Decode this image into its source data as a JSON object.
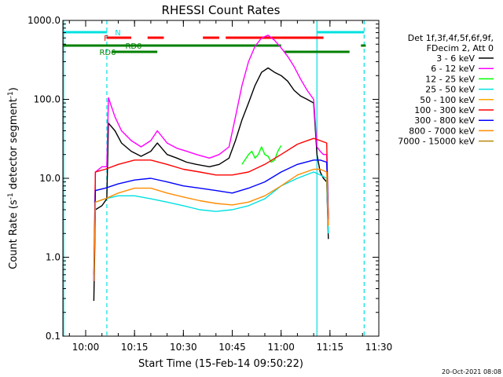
{
  "chart_data": {
    "type": "line",
    "title": "RHESSI Count Rates",
    "xlabel": "Start Time (15-Feb-14 09:50:22)",
    "ylabel_main": "Count Rate (s",
    "ylabel_sup": "-1",
    "ylabel_rest": " detector segment",
    "ylabel_sup2": "-1",
    "ylabel_close": ")",
    "y_scale": "log",
    "ylim": [
      0.1,
      1000
    ],
    "xlim_minutes": [
      -7,
      90
    ],
    "x_origin": "10:00",
    "x_ticks": [
      {
        "m": 0,
        "label": "10:00"
      },
      {
        "m": 15,
        "label": "10:15"
      },
      {
        "m": 30,
        "label": "10:30"
      },
      {
        "m": 45,
        "label": "10:45"
      },
      {
        "m": 60,
        "label": "11:00"
      },
      {
        "m": 75,
        "label": "11:15"
      },
      {
        "m": 90,
        "label": "11:30"
      }
    ],
    "y_ticks": [
      {
        "v": 1000,
        "label": "1000.0"
      },
      {
        "v": 100,
        "label": "100.0"
      },
      {
        "v": 10,
        "label": "10.0"
      },
      {
        "v": 1,
        "label": "1.0"
      },
      {
        "v": 0.1,
        "label": "0.1"
      }
    ],
    "legend_header": [
      "Det 1f,3f,4f,5f,6f,9f,",
      "FDecim 2, Att 0"
    ],
    "legend_placement": "right",
    "date_stamp": "20-Oct-2021 08:08",
    "vertical_markers": [
      {
        "m": -10,
        "style": "solid",
        "color": "#00e0e0"
      },
      {
        "m": 6.5,
        "style": "dashed",
        "color": "#00e0e0"
      },
      {
        "m": 71,
        "style": "solid",
        "color": "#00e0e0"
      },
      {
        "m": 85.5,
        "style": "dashed",
        "color": "#00e0e0"
      }
    ],
    "flag_bars": [
      {
        "label": "N",
        "color": "#00e0e0",
        "y": 41,
        "segments": [
          [
            -10,
            6.5
          ],
          [
            71,
            85.5
          ]
        ]
      },
      {
        "label": "F",
        "color": "#ff0000",
        "y": 48,
        "segments": [
          [
            6.5,
            14
          ],
          [
            19,
            24
          ],
          [
            36,
            41
          ],
          [
            43,
            73
          ]
        ]
      },
      {
        "label": "RD0",
        "color": "#008000",
        "y": 58,
        "segments": [
          [
            -10,
            60
          ],
          [
            84.5,
            86
          ]
        ]
      },
      {
        "label": "RD6",
        "color": "#008000",
        "y": 66,
        "segments": [
          [
            8,
            22
          ],
          [
            61,
            81
          ]
        ]
      }
    ],
    "series": [
      {
        "name": "3 - 6 keV",
        "color": "#000000",
        "x": [
          2.5,
          3,
          5,
          6.5,
          7,
          9,
          11,
          14,
          17,
          20,
          22,
          25,
          28,
          31,
          34,
          38,
          41,
          44,
          46,
          48,
          50,
          52,
          54,
          56,
          58,
          60,
          62,
          64,
          66,
          68,
          70,
          71,
          72,
          73,
          74,
          74.5
        ],
        "y": [
          0.28,
          4,
          4.5,
          5.5,
          50,
          40,
          28,
          22,
          19,
          22,
          28,
          20,
          18,
          16,
          15,
          14,
          15,
          18,
          30,
          55,
          90,
          150,
          220,
          250,
          220,
          200,
          170,
          130,
          110,
          100,
          90,
          20,
          12,
          10,
          9,
          1.7
        ]
      },
      {
        "name": "6 - 12 keV",
        "color": "#ff00ff",
        "x": [
          2.5,
          3,
          5,
          6.5,
          7,
          9,
          11,
          14,
          17,
          20,
          22,
          25,
          28,
          31,
          34,
          38,
          41,
          44,
          46,
          48,
          50,
          52,
          54,
          56,
          58,
          60,
          62,
          64,
          66,
          68,
          70,
          71,
          72,
          73,
          74,
          74.5
        ],
        "y": [
          0.5,
          12,
          14,
          14,
          105,
          60,
          40,
          30,
          25,
          30,
          40,
          28,
          24,
          22,
          20,
          18,
          20,
          25,
          60,
          150,
          300,
          470,
          600,
          650,
          560,
          450,
          350,
          260,
          180,
          130,
          100,
          25,
          22,
          20,
          20,
          2.5
        ]
      },
      {
        "name": "12 - 25 keV",
        "color": "#00ff00",
        "x": [
          48,
          50,
          51,
          52,
          53,
          54,
          55,
          56,
          57,
          58,
          59,
          60
        ],
        "y": [
          15,
          20,
          22,
          18,
          20,
          25,
          20,
          19,
          16,
          17,
          22,
          26
        ]
      },
      {
        "name": "25 - 50 keV",
        "color": "#00e0e0",
        "x": [
          2.5,
          3,
          6,
          10,
          15,
          20,
          25,
          30,
          35,
          40,
          45,
          50,
          55,
          60,
          65,
          70,
          72,
          74,
          74.5
        ],
        "y": [
          5,
          5,
          5.5,
          6,
          6,
          5.5,
          5,
          4.5,
          4,
          3.8,
          4,
          4.5,
          5.5,
          8,
          10,
          12,
          11,
          10,
          2
        ]
      },
      {
        "name": "50 - 100 keV",
        "color": "#ffa500",
        "x": [],
        "y": []
      },
      {
        "name": "100 - 300 keV",
        "color": "#ff0000",
        "x": [
          2.5,
          3,
          6,
          10,
          15,
          20,
          25,
          30,
          35,
          40,
          45,
          50,
          55,
          60,
          65,
          70,
          72,
          74,
          74.5
        ],
        "y": [
          0.6,
          12,
          13,
          15,
          17,
          17,
          15,
          13,
          12,
          11,
          11,
          12,
          15,
          20,
          27,
          32,
          30,
          28,
          3
        ]
      },
      {
        "name": "300 - 800 keV",
        "color": "#0000ff",
        "x": [
          2.5,
          3,
          6,
          10,
          15,
          20,
          25,
          30,
          35,
          40,
          45,
          50,
          55,
          60,
          65,
          70,
          72,
          74,
          74.5
        ],
        "y": [
          0.5,
          7,
          7.5,
          8.5,
          9.5,
          10,
          9,
          8,
          7.5,
          7,
          6.5,
          7.5,
          9,
          12,
          15,
          17,
          17,
          16,
          3
        ]
      },
      {
        "name": "800 - 7000 keV",
        "color": "#ff8c00",
        "x": [
          2.5,
          3,
          6,
          10,
          15,
          20,
          25,
          30,
          35,
          40,
          45,
          50,
          55,
          60,
          65,
          70,
          72,
          74,
          74.5
        ],
        "y": [
          0.5,
          5,
          5.5,
          6.5,
          7.5,
          7.5,
          6.5,
          5.8,
          5.2,
          4.8,
          4.6,
          5,
          6,
          8,
          11,
          13,
          13,
          12,
          2.5
        ]
      },
      {
        "name": "7000 - 15000 keV",
        "color": "#b8860b",
        "x": [],
        "y": []
      }
    ]
  }
}
